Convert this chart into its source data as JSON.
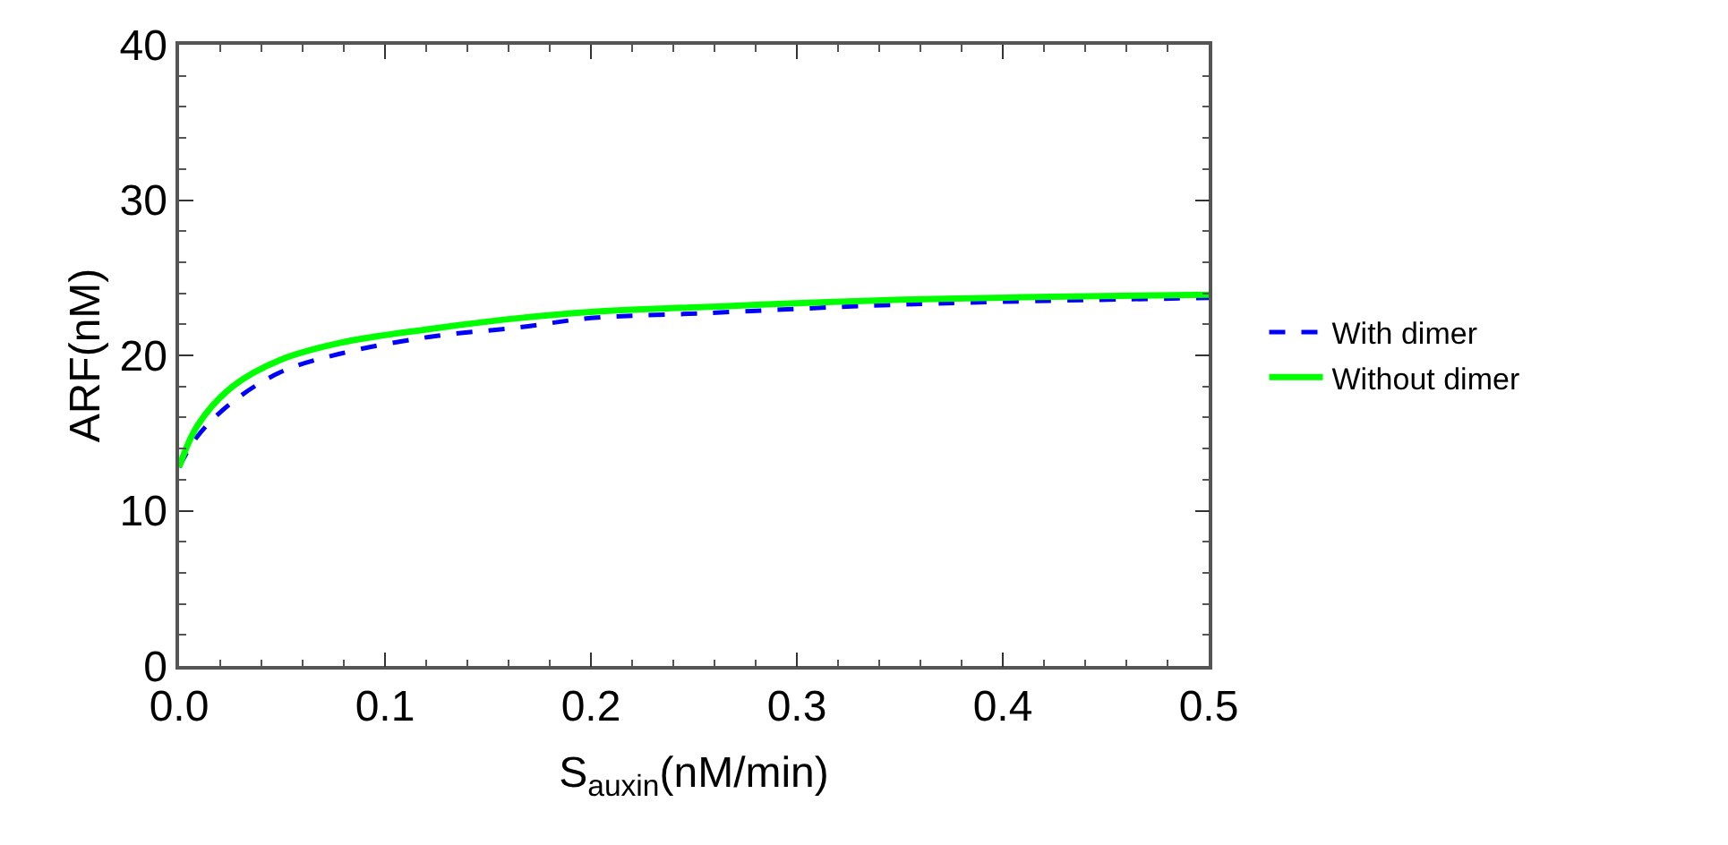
{
  "chart_data": {
    "type": "line",
    "xlabel": "S$_{auxin}$(nM/min)",
    "ylabel": "ARF(nM)",
    "x": [
      0,
      0.009,
      0.026,
      0.049,
      0.078,
      0.122,
      0.165,
      0.2,
      0.252,
      0.357,
      0.5
    ],
    "series": [
      {
        "name": "With dimer",
        "color": "#0000ff",
        "line_style": "dashed",
        "values": [
          12.8,
          14.8,
          17.0,
          18.9,
          20.1,
          21.2,
          21.8,
          22.4,
          22.7,
          23.3,
          23.7
        ]
      },
      {
        "name": "Without dimer",
        "color": "#00ff00",
        "line_style": "solid",
        "values": [
          12.8,
          15.5,
          18.0,
          19.7,
          20.8,
          21.7,
          22.4,
          22.8,
          23.1,
          23.6,
          23.9
        ]
      }
    ],
    "xlim": [
      0,
      0.5
    ],
    "xticks": [
      {
        "value": 0,
        "label": "0.0"
      },
      0.1,
      0.2,
      0.3,
      0.4,
      0.5
    ],
    "ylim": [
      0,
      40
    ],
    "yticks": [
      0,
      10,
      20,
      30,
      40
    ],
    "legend": "right",
    "marker": "none"
  }
}
